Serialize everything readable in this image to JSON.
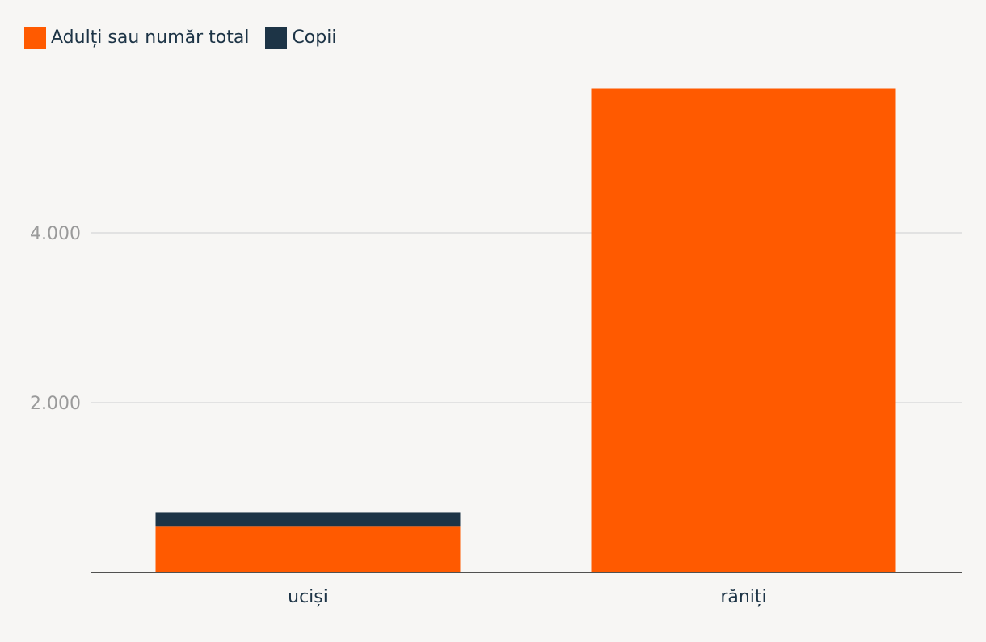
{
  "chart_data": {
    "type": "bar",
    "stacked": true,
    "categories": [
      "uciși",
      "răniți"
    ],
    "series": [
      {
        "name": "Adulți sau număr total",
        "color": "#ff5a00",
        "values": [
          540,
          5700
        ]
      },
      {
        "name": "Copii",
        "color": "#1d3446",
        "values": [
          170,
          0
        ]
      }
    ],
    "yticks": [
      {
        "value": 2000,
        "label": "2.000"
      },
      {
        "value": 4000,
        "label": "4.000"
      }
    ],
    "ylim": [
      0,
      6000
    ],
    "grid": true,
    "legend_position": "top-left",
    "title": "",
    "xlabel": "",
    "ylabel": ""
  }
}
